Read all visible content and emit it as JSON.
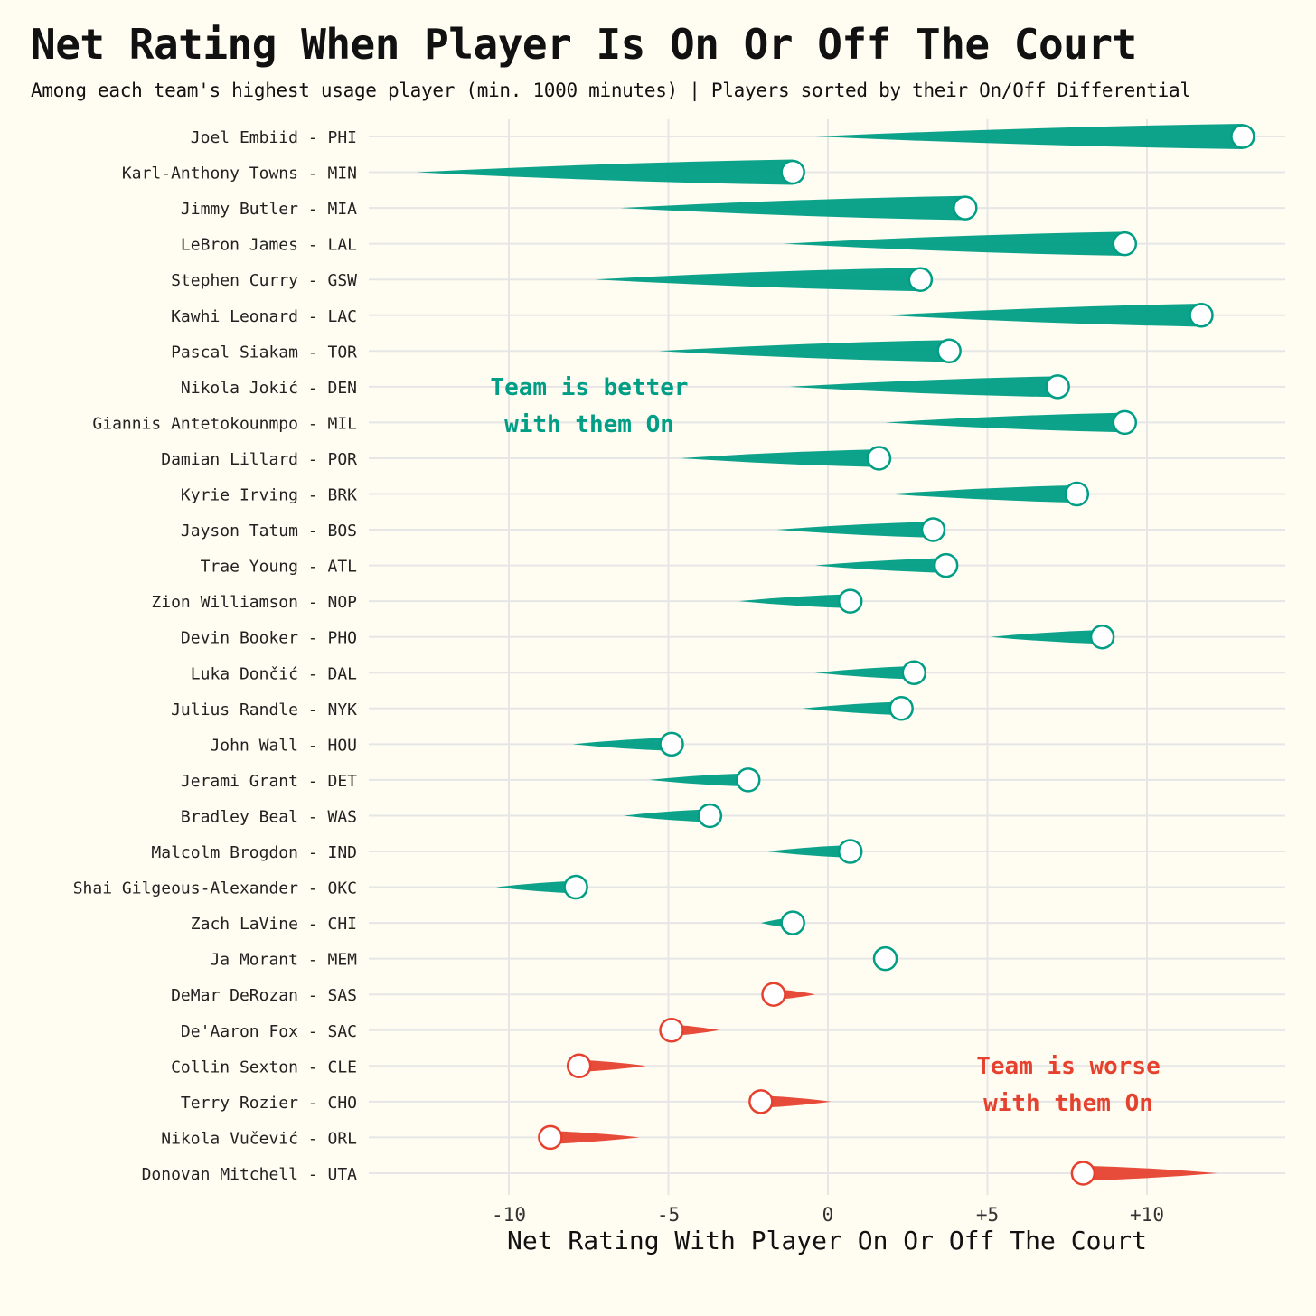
{
  "title": "Net Rating When Player Is On Or Off The Court",
  "subtitle": "Among each team's highest usage player (min. 1000 minutes) | Players sorted by their On/Off Differential",
  "colors": {
    "positive": "#009e84",
    "negative": "#e6412e",
    "background": "#fffcf2",
    "grid": "#e6e6e6",
    "text": "#111111"
  },
  "annotations": {
    "better_line1": "Team is better",
    "better_line2": "with them On",
    "worse_line1": "Team is worse",
    "worse_line2": "with them On"
  },
  "chart_data": {
    "type": "dumbbell",
    "xlabel": "Net Rating With Player On Or Off The Court",
    "xlim": [
      -14.5,
      14.5
    ],
    "x_ticks": [
      {
        "value": -10,
        "label": "-10"
      },
      {
        "value": -5,
        "label": "-5"
      },
      {
        "value": 0,
        "label": "0"
      },
      {
        "value": 5,
        "label": "+5"
      },
      {
        "value": 10,
        "label": "+10"
      }
    ],
    "grid": true,
    "series_fields": [
      "off_rating",
      "on_rating"
    ],
    "players": [
      {
        "label": "Joel Embiid - PHI",
        "off": -0.4,
        "on": 13.0
      },
      {
        "label": "Karl-Anthony Towns - MIN",
        "off": -12.9,
        "on": -1.1
      },
      {
        "label": "Jimmy Butler - MIA",
        "off": -6.5,
        "on": 4.3
      },
      {
        "label": "LeBron James - LAL",
        "off": -1.4,
        "on": 9.3
      },
      {
        "label": "Stephen Curry - GSW",
        "off": -7.3,
        "on": 2.9
      },
      {
        "label": "Kawhi Leonard - LAC",
        "off": 1.8,
        "on": 11.7
      },
      {
        "label": "Pascal Siakam - TOR",
        "off": -5.3,
        "on": 3.8
      },
      {
        "label": "Nikola Jokić - DEN",
        "off": -1.2,
        "on": 7.2
      },
      {
        "label": "Giannis Antetokounmpo - MIL",
        "off": 1.8,
        "on": 9.3
      },
      {
        "label": "Damian Lillard - POR",
        "off": -4.6,
        "on": 1.6
      },
      {
        "label": "Kyrie Irving - BRK",
        "off": 1.9,
        "on": 7.8
      },
      {
        "label": "Jayson Tatum - BOS",
        "off": -1.6,
        "on": 3.3
      },
      {
        "label": "Trae Young - ATL",
        "off": -0.4,
        "on": 3.7
      },
      {
        "label": "Zion Williamson - NOP",
        "off": -2.8,
        "on": 0.7
      },
      {
        "label": "Devin Booker - PHO",
        "off": 5.1,
        "on": 8.6
      },
      {
        "label": "Luka Dončić - DAL",
        "off": -0.4,
        "on": 2.7
      },
      {
        "label": "Julius Randle - NYK",
        "off": -0.8,
        "on": 2.3
      },
      {
        "label": "John Wall - HOU",
        "off": -8.0,
        "on": -4.9
      },
      {
        "label": "Jerami Grant - DET",
        "off": -5.6,
        "on": -2.5
      },
      {
        "label": "Bradley Beal - WAS",
        "off": -6.4,
        "on": -3.7
      },
      {
        "label": "Malcolm Brogdon - IND",
        "off": -1.9,
        "on": 0.7
      },
      {
        "label": "Shai Gilgeous-Alexander - OKC",
        "off": -10.4,
        "on": -7.9
      },
      {
        "label": "Zach LaVine - CHI",
        "off": -2.1,
        "on": -1.1
      },
      {
        "label": "Ja Morant - MEM",
        "off": 1.8,
        "on": 1.8
      },
      {
        "label": "DeMar DeRozan - SAS",
        "off": -0.4,
        "on": -1.7
      },
      {
        "label": "De'Aaron Fox - SAC",
        "off": -3.4,
        "on": -4.9
      },
      {
        "label": "Collin Sexton - CLE",
        "off": -5.7,
        "on": -7.8
      },
      {
        "label": "Terry Rozier - CHO",
        "off": 0.1,
        "on": -2.1
      },
      {
        "label": "Nikola Vučević - ORL",
        "off": -5.9,
        "on": -8.7
      },
      {
        "label": "Donovan Mitchell - UTA",
        "off": 12.2,
        "on": 8.0
      }
    ]
  }
}
